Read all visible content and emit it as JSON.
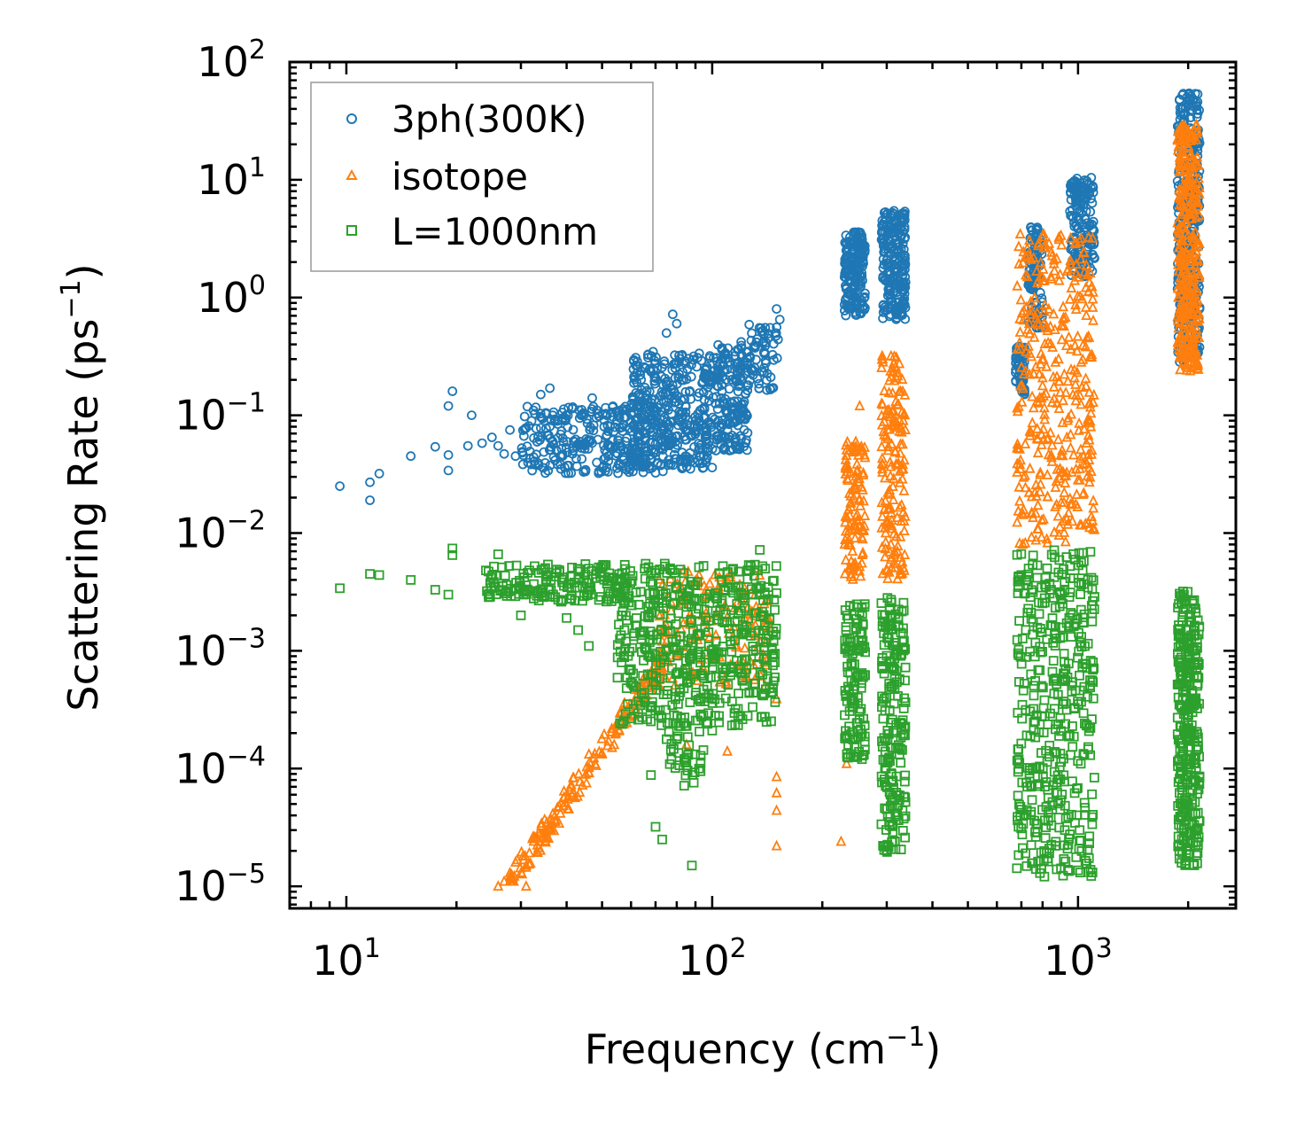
{
  "chart_data": {
    "type": "scatter",
    "xscale": "log",
    "yscale": "log",
    "xlim": [
      7,
      2700
    ],
    "ylim": [
      6.5e-06,
      100
    ],
    "xlabel": "Frequency (cm",
    "xlabel_sup": "−1",
    "xlabel_close": ")",
    "ylabel": "Scattering Rate (ps",
    "ylabel_sup": "−1",
    "ylabel_close": ")",
    "x_ticks": [
      {
        "value": 10,
        "base": "10",
        "exp": "1"
      },
      {
        "value": 100,
        "base": "10",
        "exp": "2"
      },
      {
        "value": 1000,
        "base": "10",
        "exp": "3"
      }
    ],
    "y_ticks": [
      {
        "value": 1e-05,
        "base": "10",
        "exp": "−5"
      },
      {
        "value": 0.0001,
        "base": "10",
        "exp": "−4"
      },
      {
        "value": 0.001,
        "base": "10",
        "exp": "−3"
      },
      {
        "value": 0.01,
        "base": "10",
        "exp": "−2"
      },
      {
        "value": 0.1,
        "base": "10",
        "exp": "−1"
      },
      {
        "value": 1,
        "base": "10",
        "exp": "0"
      },
      {
        "value": 10,
        "base": "10",
        "exp": "1"
      },
      {
        "value": 100,
        "base": "10",
        "exp": "2"
      }
    ],
    "legend_position": "top-left",
    "series": [
      {
        "name": "3ph(300K)",
        "marker": "circle",
        "color": "#1f77b4",
        "explicit_points": [
          [
            9.6,
            0.025
          ],
          [
            11.6,
            0.027
          ],
          [
            11.6,
            0.019
          ],
          [
            12.3,
            0.032
          ],
          [
            15,
            0.045
          ],
          [
            17.5,
            0.054
          ],
          [
            19,
            0.12
          ],
          [
            19,
            0.034
          ],
          [
            19,
            0.046
          ],
          [
            19.5,
            0.16
          ],
          [
            21.5,
            0.055
          ],
          [
            22,
            0.1
          ],
          [
            23.5,
            0.058
          ],
          [
            25,
            0.065
          ],
          [
            26,
            0.055
          ],
          [
            27,
            0.047
          ],
          [
            28,
            0.075
          ],
          [
            29,
            0.045
          ],
          [
            31,
            0.078
          ],
          [
            34,
            0.15
          ],
          [
            36,
            0.17
          ],
          [
            47,
            0.14
          ],
          [
            65,
            0.1
          ],
          [
            75,
            0.5
          ],
          [
            78,
            0.72
          ],
          [
            80,
            0.6
          ],
          [
            93,
            0.045
          ],
          [
            100,
            0.036
          ],
          [
            120,
            0.42
          ],
          [
            130,
            0.38
          ],
          [
            136,
            0.55
          ],
          [
            142,
            0.45
          ],
          [
            146,
            0.17
          ],
          [
            150,
            0.8
          ],
          [
            153,
            0.65
          ]
        ],
        "clusters": [
          {
            "xlo": 30,
            "xhi": 75,
            "ylo": 0.032,
            "yhi": 0.12,
            "n": 320
          },
          {
            "xlo": 60,
            "xhi": 100,
            "ylo": 0.035,
            "yhi": 0.35,
            "n": 360
          },
          {
            "xlo": 100,
            "xhi": 125,
            "ylo": 0.05,
            "yhi": 0.4,
            "n": 180
          },
          {
            "xlo": 125,
            "xhi": 152,
            "ylo": 0.16,
            "yhi": 0.6,
            "n": 60
          },
          {
            "xlo": 230,
            "xhi": 262,
            "ylo": 0.7,
            "yhi": 3.6,
            "n": 170
          },
          {
            "xlo": 290,
            "xhi": 338,
            "ylo": 0.65,
            "yhi": 5.5,
            "n": 220
          },
          {
            "xlo": 675,
            "xhi": 715,
            "ylo": 0.15,
            "yhi": 0.4,
            "n": 60
          },
          {
            "xlo": 730,
            "xhi": 800,
            "ylo": 0.55,
            "yhi": 4,
            "n": 100
          },
          {
            "xlo": 950,
            "xhi": 1110,
            "ylo": 1.5,
            "yhi": 10.5,
            "n": 160
          },
          {
            "xlo": 1870,
            "xhi": 2150,
            "ylo": 0.28,
            "yhi": 55,
            "n": 360
          }
        ]
      },
      {
        "name": "isotope",
        "marker": "triangle",
        "color": "#ff7f0e",
        "explicit_points": [
          [
            26,
            1e-05
          ],
          [
            27,
            1.1e-05
          ],
          [
            28,
            1.3e-05
          ],
          [
            29,
            1.6e-05
          ],
          [
            31,
            1e-05
          ],
          [
            69,
            0.00055
          ],
          [
            85,
            0.00016
          ],
          [
            110,
            0.00014
          ],
          [
            150,
            0.00039
          ],
          [
            150,
            8.5e-05
          ],
          [
            150,
            6.2e-05
          ],
          [
            150,
            4.4e-05
          ],
          [
            150,
            2.2e-05
          ],
          [
            225,
            2.4e-05
          ],
          [
            233,
            0.00011
          ],
          [
            253,
            0.12
          ],
          [
            335,
            0.0048
          ]
        ],
        "clusters": [
          {
            "type": "line",
            "xlo": 28,
            "xhi": 75,
            "ylo": 1.1e-05,
            "yhi": 0.0009,
            "n": 180
          },
          {
            "xlo": 70,
            "xhi": 145,
            "ylo": 0.0005,
            "yhi": 0.005,
            "n": 160
          },
          {
            "xlo": 230,
            "xhi": 262,
            "ylo": 0.004,
            "yhi": 0.06,
            "n": 110
          },
          {
            "xlo": 290,
            "xhi": 338,
            "ylo": 0.004,
            "yhi": 0.32,
            "n": 160
          },
          {
            "xlo": 680,
            "xhi": 1110,
            "ylo": 0.008,
            "yhi": 3.5,
            "n": 380
          },
          {
            "xlo": 1870,
            "xhi": 2150,
            "ylo": 0.23,
            "yhi": 30,
            "n": 330
          }
        ]
      },
      {
        "name": "L=1000nm",
        "marker": "square",
        "color": "#2ca02c",
        "explicit_points": [
          [
            9.6,
            0.0034
          ],
          [
            11.6,
            0.0045
          ],
          [
            12.3,
            0.0044
          ],
          [
            15,
            0.004
          ],
          [
            17.5,
            0.0033
          ],
          [
            19,
            0.003
          ],
          [
            19.5,
            0.0074
          ],
          [
            19.5,
            0.0065
          ],
          [
            26,
            0.0066
          ],
          [
            30,
            0.002
          ],
          [
            40,
            0.0019
          ],
          [
            43,
            0.0015
          ],
          [
            46,
            0.0011
          ],
          [
            52,
            0.0032
          ],
          [
            60,
            0.0007
          ],
          [
            68,
            8.8e-05
          ],
          [
            70,
            3.2e-05
          ],
          [
            73,
            2.5e-05
          ],
          [
            88,
            1.5e-05
          ],
          [
            92,
            0.0001
          ],
          [
            100,
            0.00021
          ],
          [
            135,
            0.0072
          ]
        ],
        "clusters": [
          {
            "xlo": 24,
            "xhi": 60,
            "ylo": 0.0026,
            "yhi": 0.0055,
            "n": 180
          },
          {
            "xlo": 55,
            "xhi": 150,
            "ylo": 0.00023,
            "yhi": 0.0055,
            "n": 520
          },
          {
            "xlo": 75,
            "xhi": 95,
            "ylo": 7e-05,
            "yhi": 0.00025,
            "n": 40
          },
          {
            "xlo": 230,
            "xhi": 262,
            "ylo": 0.00012,
            "yhi": 0.0025,
            "n": 120
          },
          {
            "xlo": 290,
            "xhi": 338,
            "ylo": 1.9e-05,
            "yhi": 0.0029,
            "n": 200
          },
          {
            "xlo": 680,
            "xhi": 1110,
            "ylo": 1.2e-05,
            "yhi": 0.0072,
            "n": 420
          },
          {
            "xlo": 1870,
            "xhi": 2150,
            "ylo": 1.5e-05,
            "yhi": 0.0033,
            "n": 320
          }
        ]
      }
    ]
  }
}
